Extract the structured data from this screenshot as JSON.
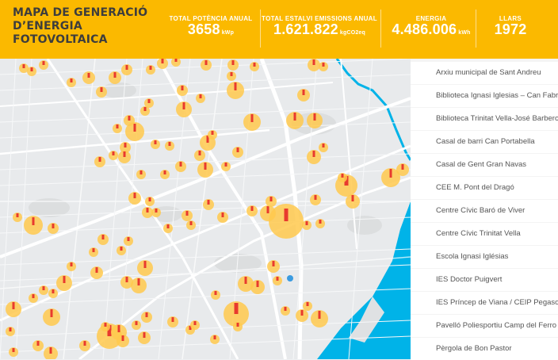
{
  "header": {
    "title": "MAPA DE GENERACIÓ\nD’ENERGIA\nFOTOVOLTAICA",
    "stats": {
      "potencia": {
        "label": "TOTAL POTÈNCIA ANUAL",
        "value": "3658",
        "unit": "kWp"
      },
      "emissions": {
        "label": "TOTAL ESTALVI EMISSIONS ANUAL",
        "value": "1.621.822",
        "unit": "kgCO2eq"
      },
      "energia": {
        "label": "ENERGIA",
        "value": "4.486.006",
        "unit": "kWh"
      },
      "llars": {
        "label": "LLARS",
        "value": "1972"
      }
    }
  },
  "sidebar": {
    "items": [
      "Arxiu municipal de Sant Andreu",
      "Biblioteca Ignasi Iglesias – Can Fabra.",
      "Biblioteca Trinitat Vella-José Barbero",
      "Casal de barri Can Portabella",
      "Casal de Gent Gran Navas",
      "CEE M. Pont del Dragó",
      "Centre Cívic Baró de Viver",
      "Centre Cívic Trinitat Vella",
      "Escola Ignasi Iglésias",
      "IES Doctor Puigvert",
      "IES Príncep de Viana / CEIP Pegaso",
      "Pavelló Poliesportiu Camp del Ferro",
      "Pèrgola de Bon Pastor"
    ]
  },
  "colors": {
    "header_bg": "#fbb900",
    "marker_halo": "#ffc94d",
    "marker_bar": "#e83a2e",
    "sea": "#00b3e8",
    "map_bg": "#e8eaec"
  },
  "map": {
    "icons": {
      "marker": "solar-installation-icon"
    }
  }
}
